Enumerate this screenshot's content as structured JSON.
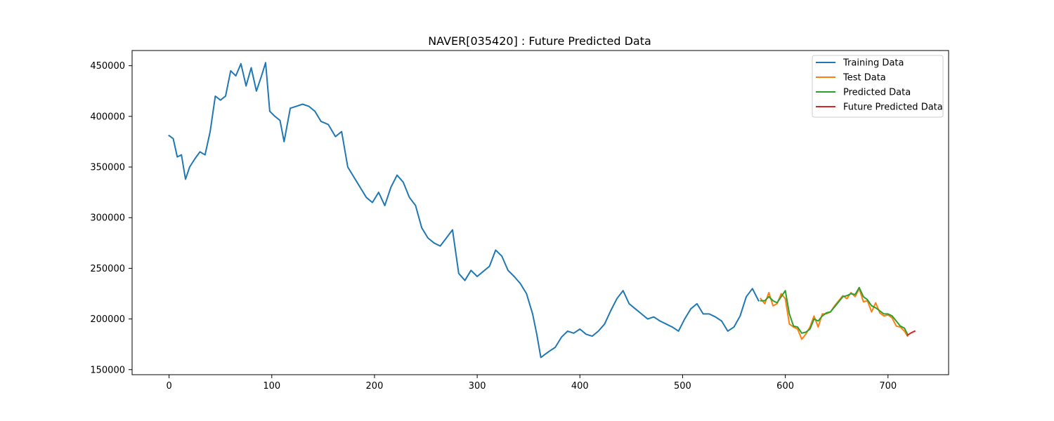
{
  "chart_data": {
    "type": "line",
    "title": "NAVER[035420] : Future Predicted Data",
    "xlabel": "",
    "ylabel": "",
    "xlim": [
      -36,
      759
    ],
    "ylim": [
      145000,
      465000
    ],
    "x_ticks": [
      0,
      100,
      200,
      300,
      400,
      500,
      600,
      700
    ],
    "y_ticks": [
      150000,
      200000,
      250000,
      300000,
      350000,
      400000,
      450000
    ],
    "grid": false,
    "legend_position": "top-right",
    "series": [
      {
        "name": "Training Data",
        "color": "#1f77b4",
        "x": [
          0,
          4,
          8,
          12,
          16,
          20,
          25,
          30,
          35,
          40,
          45,
          50,
          55,
          60,
          65,
          70,
          75,
          80,
          85,
          90,
          94,
          98,
          103,
          108,
          112,
          118,
          124,
          130,
          136,
          142,
          148,
          155,
          162,
          168,
          174,
          180,
          186,
          192,
          198,
          204,
          210,
          216,
          222,
          228,
          234,
          240,
          246,
          252,
          258,
          264,
          270,
          276,
          282,
          288,
          294,
          300,
          306,
          312,
          318,
          324,
          330,
          336,
          342,
          348,
          354,
          358,
          362,
          366,
          370,
          376,
          382,
          388,
          394,
          400,
          406,
          412,
          418,
          424,
          430,
          436,
          442,
          448,
          454,
          460,
          466,
          472,
          478,
          484,
          490,
          496,
          502,
          508,
          514,
          520,
          526,
          532,
          538,
          544,
          550,
          556,
          562,
          568,
          574
        ],
        "values": [
          381000,
          378000,
          360000,
          362000,
          338000,
          350000,
          358000,
          365000,
          362000,
          385000,
          420000,
          416000,
          420000,
          445000,
          440000,
          452000,
          430000,
          448000,
          425000,
          440000,
          453000,
          405000,
          400000,
          396000,
          375000,
          408000,
          410000,
          412000,
          410000,
          405000,
          395000,
          392000,
          380000,
          385000,
          350000,
          340000,
          330000,
          320000,
          315000,
          325000,
          312000,
          330000,
          342000,
          335000,
          320000,
          312000,
          290000,
          280000,
          275000,
          272000,
          280000,
          288000,
          245000,
          238000,
          248000,
          242000,
          247000,
          252000,
          268000,
          262000,
          248000,
          242000,
          235000,
          225000,
          205000,
          185000,
          162000,
          165000,
          168000,
          172000,
          182000,
          188000,
          186000,
          190000,
          185000,
          183000,
          188000,
          195000,
          208000,
          220000,
          228000,
          215000,
          210000,
          205000,
          200000,
          202000,
          198000,
          195000,
          192000,
          188000,
          200000,
          210000,
          215000,
          205000,
          205000,
          202000,
          198000,
          188000,
          192000,
          203000,
          222000,
          230000,
          218000
        ]
      },
      {
        "name": "Test Data",
        "color": "#ff7f0e",
        "x": [
          576,
          580,
          584,
          588,
          592,
          596,
          600,
          604,
          608,
          612,
          616,
          620,
          624,
          628,
          632,
          636,
          640,
          644,
          648,
          652,
          656,
          660,
          664,
          668,
          672,
          676,
          680,
          684,
          688,
          692,
          696,
          700,
          704,
          708,
          712,
          716,
          719
        ],
        "values": [
          220000,
          215000,
          226000,
          213000,
          215000,
          225000,
          220000,
          195000,
          192000,
          190000,
          180000,
          185000,
          192000,
          203000,
          192000,
          205000,
          205000,
          207000,
          213000,
          218000,
          223000,
          220000,
          226000,
          222000,
          230000,
          217000,
          218000,
          207000,
          216000,
          206000,
          203000,
          204000,
          201000,
          193000,
          192000,
          188000,
          183000
        ]
      },
      {
        "name": "Predicted Data",
        "color": "#2ca02c",
        "x": [
          576,
          580,
          584,
          588,
          592,
          596,
          600,
          604,
          608,
          612,
          616,
          620,
          624,
          628,
          632,
          636,
          640,
          644,
          648,
          652,
          656,
          660,
          664,
          668,
          672,
          676,
          680,
          684,
          688,
          692,
          696,
          700,
          704,
          708,
          712,
          716,
          719
        ],
        "values": [
          218000,
          218000,
          222000,
          218000,
          216000,
          222000,
          228000,
          205000,
          193000,
          192000,
          186000,
          187000,
          190000,
          200000,
          198000,
          203000,
          206000,
          207000,
          212000,
          217000,
          222000,
          223000,
          225000,
          224000,
          231000,
          222000,
          219000,
          213000,
          211000,
          208000,
          205000,
          205000,
          203000,
          198000,
          193000,
          191000,
          185000
        ]
      },
      {
        "name": "Future Predicted Data",
        "color": "#d62728",
        "x": [
          719,
          722,
          726
        ],
        "values": [
          184000,
          186000,
          188000
        ]
      }
    ]
  }
}
